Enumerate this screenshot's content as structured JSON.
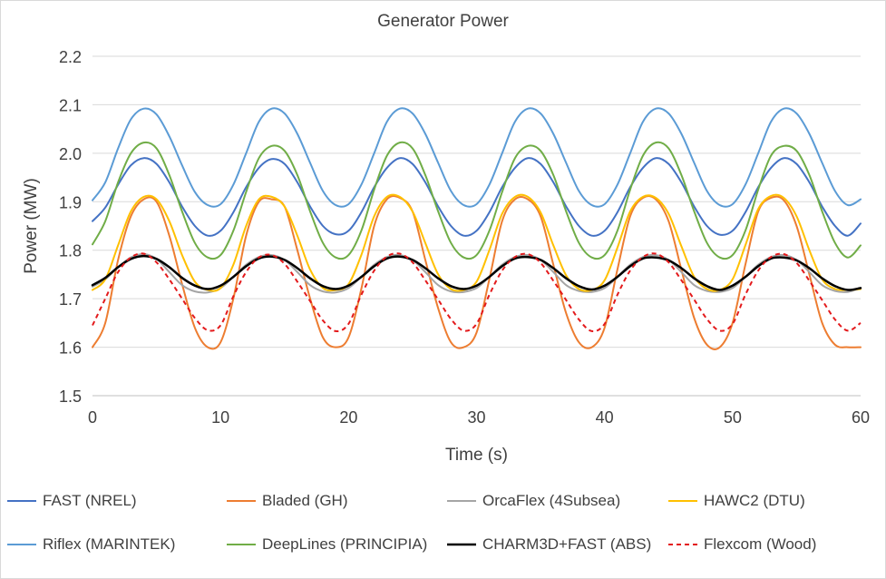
{
  "chart_data": {
    "type": "line",
    "title": "Generator Power",
    "xlabel": "Time (s)",
    "ylabel": "Power (MW)",
    "xlim": [
      0,
      60
    ],
    "ylim": [
      1.5,
      2.2
    ],
    "x_ticks": [
      "0",
      "10",
      "20",
      "30",
      "40",
      "50",
      "60"
    ],
    "y_ticks": [
      "1.5",
      "1.6",
      "1.7",
      "1.8",
      "1.9",
      "2.0",
      "2.1",
      "2.2"
    ],
    "grid": "horizontal",
    "legend_position": "bottom",
    "series": [
      {
        "name": "FAST (NREL)",
        "color": "#4472c4",
        "dash": "solid",
        "width": 2,
        "x": [
          0,
          1,
          2,
          3,
          4,
          5,
          6,
          7,
          8,
          9,
          10,
          11,
          12,
          13,
          14,
          15,
          16,
          17,
          18,
          19,
          20,
          21,
          22,
          23,
          24,
          25,
          26,
          27,
          28,
          29,
          30,
          31,
          32,
          33,
          34,
          35,
          36,
          37,
          38,
          39,
          40,
          41,
          42,
          43,
          44,
          45,
          46,
          47,
          48,
          49,
          50,
          51,
          52,
          53,
          54,
          55,
          56,
          57,
          58,
          59,
          60
        ],
        "values": [
          1.86,
          1.888,
          1.935,
          1.975,
          1.99,
          1.978,
          1.94,
          1.89,
          1.85,
          1.83,
          1.84,
          1.878,
          1.93,
          1.97,
          1.988,
          1.978,
          1.94,
          1.89,
          1.85,
          1.833,
          1.84,
          1.878,
          1.93,
          1.97,
          1.99,
          1.978,
          1.94,
          1.89,
          1.85,
          1.83,
          1.84,
          1.878,
          1.93,
          1.97,
          1.99,
          1.978,
          1.94,
          1.89,
          1.85,
          1.83,
          1.84,
          1.878,
          1.93,
          1.97,
          1.99,
          1.978,
          1.94,
          1.89,
          1.85,
          1.832,
          1.84,
          1.878,
          1.93,
          1.97,
          1.99,
          1.978,
          1.94,
          1.89,
          1.85,
          1.83,
          1.855
        ]
      },
      {
        "name": "Bladed (GH)",
        "color": "#ed7d31",
        "dash": "solid",
        "width": 2,
        "x": [
          0,
          1,
          2,
          3,
          4,
          5,
          6,
          7,
          8,
          9,
          10,
          11,
          12,
          13,
          14,
          15,
          16,
          17,
          18,
          19,
          20,
          21,
          22,
          23,
          24,
          25,
          26,
          27,
          28,
          29,
          30,
          31,
          32,
          33,
          34,
          35,
          36,
          37,
          38,
          39,
          40,
          41,
          42,
          43,
          44,
          45,
          46,
          47,
          48,
          49,
          50,
          51,
          52,
          53,
          54,
          55,
          56,
          57,
          58,
          59,
          60
        ],
        "values": [
          1.6,
          1.65,
          1.78,
          1.87,
          1.905,
          1.9,
          1.83,
          1.73,
          1.64,
          1.6,
          1.61,
          1.7,
          1.83,
          1.9,
          1.905,
          1.89,
          1.8,
          1.7,
          1.62,
          1.6,
          1.62,
          1.72,
          1.85,
          1.905,
          1.908,
          1.88,
          1.78,
          1.68,
          1.61,
          1.6,
          1.63,
          1.74,
          1.86,
          1.905,
          1.905,
          1.87,
          1.77,
          1.67,
          1.61,
          1.6,
          1.64,
          1.76,
          1.87,
          1.908,
          1.905,
          1.86,
          1.76,
          1.66,
          1.605,
          1.6,
          1.65,
          1.77,
          1.88,
          1.908,
          1.903,
          1.85,
          1.75,
          1.65,
          1.605,
          1.6,
          1.6
        ]
      },
      {
        "name": "OrcaFlex (4Subsea)",
        "color": "#a5a5a5",
        "dash": "solid",
        "width": 2,
        "x": [
          0,
          1,
          2,
          3,
          4,
          5,
          6,
          7,
          8,
          9,
          10,
          11,
          12,
          13,
          14,
          15,
          16,
          17,
          18,
          19,
          20,
          21,
          22,
          23,
          24,
          25,
          26,
          27,
          28,
          29,
          30,
          31,
          32,
          33,
          34,
          35,
          36,
          37,
          38,
          39,
          40,
          41,
          42,
          43,
          44,
          45,
          46,
          47,
          48,
          49,
          50,
          51,
          52,
          53,
          54,
          55,
          56,
          57,
          58,
          59,
          60
        ],
        "values": [
          1.725,
          1.74,
          1.765,
          1.785,
          1.792,
          1.782,
          1.755,
          1.728,
          1.715,
          1.713,
          1.722,
          1.745,
          1.77,
          1.786,
          1.79,
          1.78,
          1.755,
          1.728,
          1.715,
          1.713,
          1.722,
          1.745,
          1.77,
          1.786,
          1.79,
          1.78,
          1.755,
          1.728,
          1.715,
          1.714,
          1.722,
          1.745,
          1.77,
          1.786,
          1.79,
          1.78,
          1.755,
          1.728,
          1.716,
          1.714,
          1.722,
          1.745,
          1.77,
          1.786,
          1.79,
          1.78,
          1.755,
          1.728,
          1.716,
          1.714,
          1.722,
          1.745,
          1.77,
          1.786,
          1.79,
          1.78,
          1.755,
          1.728,
          1.716,
          1.714,
          1.722
        ]
      },
      {
        "name": "HAWC2 (DTU)",
        "color": "#ffc000",
        "dash": "solid",
        "width": 2,
        "x": [
          0,
          1,
          2,
          3,
          4,
          5,
          6,
          7,
          8,
          9,
          10,
          11,
          12,
          13,
          14,
          15,
          16,
          17,
          18,
          19,
          20,
          21,
          22,
          23,
          24,
          25,
          26,
          27,
          28,
          29,
          30,
          31,
          32,
          33,
          34,
          35,
          36,
          37,
          38,
          39,
          40,
          41,
          42,
          43,
          44,
          45,
          46,
          47,
          48,
          49,
          50,
          51,
          52,
          53,
          54,
          55,
          56,
          57,
          58,
          59,
          60
        ],
        "values": [
          1.718,
          1.74,
          1.81,
          1.88,
          1.91,
          1.905,
          1.86,
          1.79,
          1.735,
          1.718,
          1.722,
          1.77,
          1.85,
          1.905,
          1.91,
          1.89,
          1.83,
          1.76,
          1.722,
          1.718,
          1.73,
          1.79,
          1.87,
          1.91,
          1.91,
          1.88,
          1.815,
          1.75,
          1.72,
          1.718,
          1.735,
          1.8,
          1.875,
          1.91,
          1.91,
          1.878,
          1.81,
          1.748,
          1.72,
          1.718,
          1.738,
          1.805,
          1.88,
          1.91,
          1.908,
          1.875,
          1.808,
          1.745,
          1.72,
          1.718,
          1.74,
          1.81,
          1.885,
          1.912,
          1.908,
          1.87,
          1.8,
          1.74,
          1.72,
          1.718,
          1.72
        ]
      },
      {
        "name": "Riflex (MARINTEK)",
        "color": "#5b9bd5",
        "dash": "solid",
        "width": 2,
        "x": [
          0,
          1,
          2,
          3,
          4,
          5,
          6,
          7,
          8,
          9,
          10,
          11,
          12,
          13,
          14,
          15,
          16,
          17,
          18,
          19,
          20,
          21,
          22,
          23,
          24,
          25,
          26,
          27,
          28,
          29,
          30,
          31,
          32,
          33,
          34,
          35,
          36,
          37,
          38,
          39,
          40,
          41,
          42,
          43,
          44,
          45,
          46,
          47,
          48,
          49,
          50,
          51,
          52,
          53,
          54,
          55,
          56,
          57,
          58,
          59,
          60
        ],
        "values": [
          1.903,
          1.94,
          2.01,
          2.07,
          2.092,
          2.08,
          2.035,
          1.975,
          1.92,
          1.893,
          1.895,
          1.935,
          2.0,
          2.065,
          2.092,
          2.082,
          2.04,
          1.98,
          1.922,
          1.893,
          1.895,
          1.935,
          2.0,
          2.065,
          2.092,
          2.082,
          2.04,
          1.98,
          1.922,
          1.893,
          1.895,
          1.935,
          2.0,
          2.065,
          2.092,
          2.082,
          2.04,
          1.98,
          1.922,
          1.893,
          1.895,
          1.935,
          2.0,
          2.065,
          2.092,
          2.082,
          2.04,
          1.98,
          1.922,
          1.893,
          1.895,
          1.935,
          2.0,
          2.065,
          2.092,
          2.082,
          2.04,
          1.98,
          1.922,
          1.893,
          1.905
        ]
      },
      {
        "name": "DeepLines (PRINCIPIA)",
        "color": "#70ad47",
        "dash": "solid",
        "width": 2,
        "x": [
          0,
          1,
          2,
          3,
          4,
          5,
          6,
          7,
          8,
          9,
          10,
          11,
          12,
          13,
          14,
          15,
          16,
          17,
          18,
          19,
          20,
          21,
          22,
          23,
          24,
          25,
          26,
          27,
          28,
          29,
          30,
          31,
          32,
          33,
          34,
          35,
          36,
          37,
          38,
          39,
          40,
          41,
          42,
          43,
          44,
          45,
          46,
          47,
          48,
          49,
          50,
          51,
          52,
          53,
          54,
          55,
          56,
          57,
          58,
          59,
          60
        ],
        "values": [
          1.812,
          1.86,
          1.94,
          2.0,
          2.022,
          2.01,
          1.955,
          1.88,
          1.815,
          1.785,
          1.79,
          1.84,
          1.92,
          1.99,
          2.015,
          2.005,
          1.955,
          1.88,
          1.815,
          1.785,
          1.79,
          1.84,
          1.925,
          1.995,
          2.022,
          2.01,
          1.955,
          1.88,
          1.815,
          1.785,
          1.79,
          1.84,
          1.92,
          1.99,
          2.015,
          2.005,
          1.955,
          1.88,
          1.815,
          1.785,
          1.79,
          1.84,
          1.925,
          1.995,
          2.022,
          2.01,
          1.955,
          1.88,
          1.815,
          1.785,
          1.79,
          1.84,
          1.925,
          1.995,
          2.015,
          2.005,
          1.955,
          1.88,
          1.815,
          1.785,
          1.81
        ]
      },
      {
        "name": "CHARM3D+FAST (ABS)",
        "color": "#000000",
        "dash": "solid",
        "width": 2.5,
        "x": [
          0,
          1,
          2,
          3,
          4,
          5,
          6,
          7,
          8,
          9,
          10,
          11,
          12,
          13,
          14,
          15,
          16,
          17,
          18,
          19,
          20,
          21,
          22,
          23,
          24,
          25,
          26,
          27,
          28,
          29,
          30,
          31,
          32,
          33,
          34,
          35,
          36,
          37,
          38,
          39,
          40,
          41,
          42,
          43,
          44,
          45,
          46,
          47,
          48,
          49,
          50,
          51,
          52,
          53,
          54,
          55,
          56,
          57,
          58,
          59,
          60
        ],
        "values": [
          1.728,
          1.743,
          1.765,
          1.782,
          1.788,
          1.782,
          1.765,
          1.743,
          1.727,
          1.72,
          1.727,
          1.745,
          1.767,
          1.783,
          1.787,
          1.78,
          1.763,
          1.742,
          1.726,
          1.72,
          1.727,
          1.745,
          1.767,
          1.783,
          1.787,
          1.78,
          1.763,
          1.742,
          1.726,
          1.72,
          1.727,
          1.745,
          1.767,
          1.783,
          1.786,
          1.78,
          1.763,
          1.742,
          1.726,
          1.719,
          1.727,
          1.745,
          1.767,
          1.783,
          1.785,
          1.779,
          1.763,
          1.742,
          1.726,
          1.718,
          1.727,
          1.745,
          1.767,
          1.783,
          1.785,
          1.779,
          1.763,
          1.742,
          1.726,
          1.718,
          1.722
        ]
      },
      {
        "name": "Flexcom (Wood)",
        "color": "#e31a1c",
        "dash": "dashed",
        "width": 2,
        "x": [
          0,
          1,
          2,
          3,
          4,
          5,
          6,
          7,
          8,
          9,
          10,
          11,
          12,
          13,
          14,
          15,
          16,
          17,
          18,
          19,
          20,
          21,
          22,
          23,
          24,
          25,
          26,
          27,
          28,
          29,
          30,
          31,
          32,
          33,
          34,
          35,
          36,
          37,
          38,
          39,
          40,
          41,
          42,
          43,
          44,
          45,
          46,
          47,
          48,
          49,
          50,
          51,
          52,
          53,
          54,
          55,
          56,
          57,
          58,
          59,
          60
        ],
        "values": [
          1.645,
          1.7,
          1.755,
          1.785,
          1.793,
          1.775,
          1.74,
          1.7,
          1.66,
          1.635,
          1.645,
          1.705,
          1.755,
          1.785,
          1.79,
          1.772,
          1.735,
          1.695,
          1.655,
          1.633,
          1.648,
          1.708,
          1.758,
          1.787,
          1.793,
          1.775,
          1.738,
          1.698,
          1.658,
          1.634,
          1.648,
          1.708,
          1.758,
          1.786,
          1.792,
          1.774,
          1.737,
          1.697,
          1.657,
          1.633,
          1.648,
          1.708,
          1.758,
          1.786,
          1.793,
          1.775,
          1.738,
          1.698,
          1.658,
          1.634,
          1.648,
          1.708,
          1.758,
          1.786,
          1.792,
          1.774,
          1.737,
          1.697,
          1.657,
          1.634,
          1.65
        ]
      }
    ]
  }
}
